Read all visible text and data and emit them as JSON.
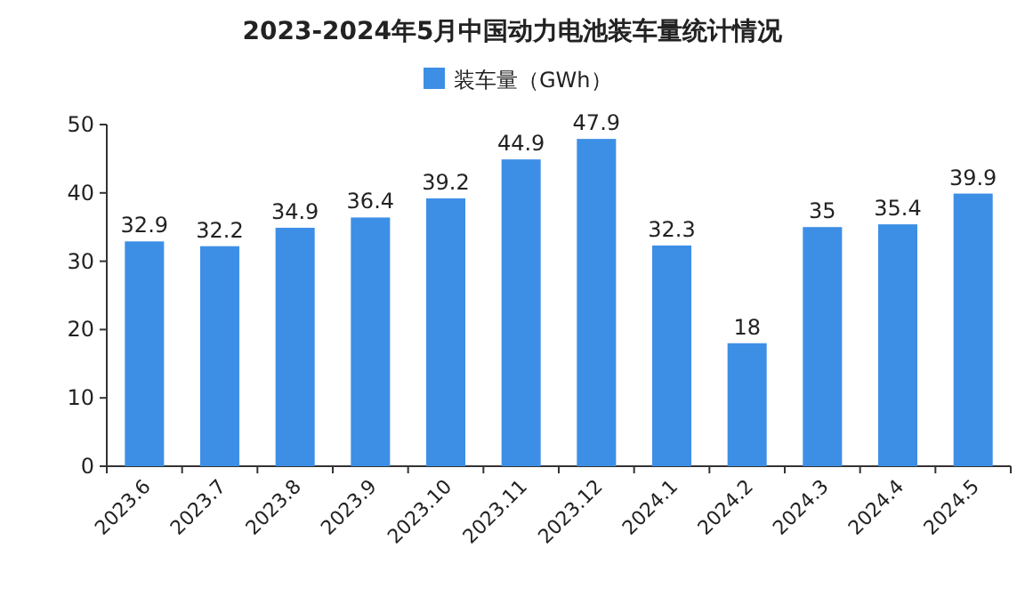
{
  "chart_data": {
    "type": "bar",
    "title": "2023-2024年5月中国动力电池装车量统计情况",
    "categories": [
      "2023.6",
      "2023.7",
      "2023.8",
      "2023.9",
      "2023.10",
      "2023.11",
      "2023.12",
      "2024.1",
      "2024.2",
      "2024.3",
      "2024.4",
      "2024.5"
    ],
    "series": [
      {
        "name": "装车量（GWh）",
        "color": "#3d8fe6",
        "values": [
          32.9,
          32.2,
          34.9,
          36.4,
          39.2,
          44.9,
          47.9,
          32.3,
          18,
          35,
          35.4,
          39.9
        ]
      }
    ],
    "ylim": [
      0,
      50
    ],
    "yticks": [
      0,
      10,
      20,
      30,
      40,
      50
    ],
    "data_labels": true,
    "legend": "top"
  }
}
